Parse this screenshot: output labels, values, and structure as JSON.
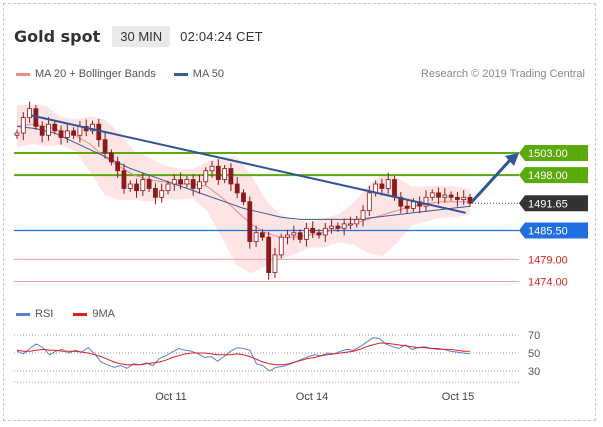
{
  "header": {
    "title": "Gold spot",
    "timeframe": "30 MIN",
    "time": "02:04:24 CET"
  },
  "legend": {
    "bollinger": {
      "label": "MA 20 + Bollinger Bands",
      "color": "#f08a8a"
    },
    "ma50": {
      "label": "MA 50",
      "color": "#3a5a9a"
    },
    "credit": "Research © 2019 Trading Central"
  },
  "rsi_legend": {
    "rsi": {
      "label": "RSI",
      "color": "#5b7fd6"
    },
    "ma9": {
      "label": "9MA",
      "color": "#e02020"
    }
  },
  "price_labels": {
    "r2": "1503.00",
    "r1": "1498.00",
    "last": "1491.65",
    "s1": "1485.50",
    "s2": "1479.00",
    "s3": "1474.00"
  },
  "colors": {
    "resistance": "#5aaa0a",
    "pivot": "#1f6fe0",
    "support": "#e02020",
    "last": "#333333",
    "trend": "#2f5597",
    "candle": "#8b1a1a"
  },
  "x_labels": [
    "Oct 11",
    "Oct 14",
    "Oct 15"
  ],
  "rsi_levels": [
    "70",
    "50",
    "30"
  ],
  "chart_data": [
    {
      "type": "candlestick",
      "title": "Gold spot",
      "timeframe": "30 MIN",
      "x_labels": [
        "Oct 11",
        "Oct 14",
        "Oct 15"
      ],
      "levels": {
        "resistance": [
          1503.0,
          1498.0
        ],
        "last": 1491.65,
        "pivot": 1485.5,
        "support": [
          1479.0,
          1474.0
        ]
      },
      "ohlc_series": {
        "name": "Gold spot",
        "close": [
          1507.5,
          1511,
          1513,
          1509,
          1507,
          1509.5,
          1508,
          1506.5,
          1508,
          1507,
          1509,
          1508,
          1509.5,
          1506,
          1503,
          1501,
          1499,
          1495,
          1496,
          1494.5,
          1497,
          1495,
          1493,
          1494.5,
          1496,
          1497,
          1496,
          1497,
          1495,
          1496.5,
          1499,
          1500,
          1497,
          1499.5,
          1496,
          1494,
          1492,
          1483,
          1485,
          1484,
          1476,
          1480,
          1484,
          1484.5,
          1485,
          1483.5,
          1486,
          1485,
          1484.5,
          1486,
          1486.5,
          1486,
          1487,
          1487,
          1488,
          1490,
          1494,
          1496,
          1495,
          1497,
          1493,
          1491,
          1490.5,
          1492,
          1491,
          1493,
          1494,
          1493,
          1493.5,
          1493,
          1492.5,
          1493,
          1491.65
        ]
      },
      "bollinger_basis_approx": [
        1509,
        1509.5,
        1509,
        1508,
        1507,
        1505,
        1502,
        1500,
        1498,
        1497,
        1496.5,
        1496,
        1496,
        1495.5,
        1493,
        1490,
        1487,
        1485,
        1484,
        1484,
        1484.5,
        1485,
        1486,
        1487,
        1488,
        1489,
        1490,
        1491,
        1491.5,
        1492,
        1492,
        1492
      ],
      "ma50_approx": [
        1509,
        1508.5,
        1507.5,
        1505.5,
        1503.5,
        1501.5,
        1499.5,
        1498,
        1496.5,
        1495,
        1493.5,
        1492,
        1490.5,
        1489.5,
        1488.5,
        1488,
        1488,
        1488,
        1488,
        1488.5,
        1489,
        1489.5,
        1490,
        1490.5,
        1491
      ],
      "trend_lines": [
        {
          "name": "downtrend",
          "from": [
            0,
            1511.5
          ],
          "to": [
            71,
            1489.5
          ]
        },
        {
          "name": "projection",
          "from": [
            72,
            1492
          ],
          "to": [
            83,
            1503
          ]
        }
      ]
    },
    {
      "type": "line",
      "title": "RSI",
      "ylim": [
        30,
        70
      ],
      "ticks": [
        70,
        50,
        30
      ],
      "series": [
        {
          "name": "RSI",
          "values": [
            52,
            49,
            55,
            60,
            56,
            48,
            52,
            54,
            50,
            53,
            51,
            56,
            49,
            40,
            37,
            34,
            36,
            33,
            38,
            37,
            39,
            36,
            44,
            47,
            51,
            55,
            53,
            52,
            49,
            45,
            46,
            41,
            46,
            52,
            56,
            55,
            53,
            38,
            36,
            30,
            34,
            35,
            37,
            40,
            43,
            46,
            48,
            47,
            50,
            49,
            52,
            54,
            53,
            57,
            62,
            67,
            66,
            60,
            57,
            55,
            59,
            54,
            56,
            57,
            55,
            54,
            54,
            52,
            51,
            50,
            49
          ]
        },
        {
          "name": "9MA",
          "values": [
            53,
            52,
            52,
            53,
            54,
            53,
            53,
            52,
            52,
            52,
            51,
            50,
            48,
            46,
            43,
            40,
            38,
            37,
            37,
            37,
            38,
            39,
            40,
            42,
            45,
            47,
            49,
            50,
            50,
            50,
            49,
            48,
            48,
            48,
            49,
            48,
            46,
            43,
            40,
            38,
            37,
            37,
            38,
            40,
            42,
            44,
            45,
            47,
            48,
            49,
            50,
            51,
            52,
            54,
            57,
            59,
            61,
            61,
            60,
            59,
            58,
            57,
            56,
            56,
            55,
            55,
            54,
            54,
            53,
            52,
            52
          ]
        }
      ]
    }
  ]
}
